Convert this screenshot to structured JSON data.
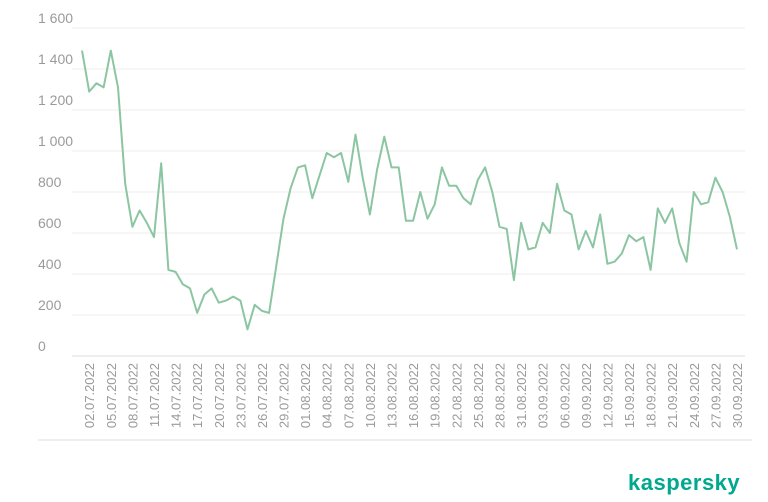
{
  "brand": {
    "logo_text": "kaspersky",
    "accent_color": "#00a88e"
  },
  "chart_data": {
    "type": "line",
    "title": "",
    "xlabel": "",
    "ylabel": "",
    "ylim": [
      0,
      1600
    ],
    "yticks": [
      0,
      200,
      400,
      600,
      800,
      1000,
      1200,
      1400,
      1600
    ],
    "ytick_labels": [
      "0",
      "200",
      "400",
      "600",
      "800",
      "1 000",
      "1 200",
      "1 400",
      "1 600"
    ],
    "grid": true,
    "line_color": "#8cc5a2",
    "x_start": "01.07.2022",
    "x_end": "30.09.2022",
    "x_tick_labels": [
      "02.07.2022",
      "05.07.2022",
      "08.07.2022",
      "11.07.2022",
      "14.07.2022",
      "17.07.2022",
      "20.07.2022",
      "23.07.2022",
      "26.07.2022",
      "29.07.2022",
      "01.08.2022",
      "04.08.2022",
      "07.08.2022",
      "10.08.2022",
      "13.08.2022",
      "16.08.2022",
      "19.08.2022",
      "22.08.2022",
      "25.08.2022",
      "28.08.2022",
      "31.08.2022",
      "03.09.2022",
      "06.09.2022",
      "09.09.2022",
      "12.09.2022",
      "15.09.2022",
      "18.09.2022",
      "21.09.2022",
      "24.09.2022",
      "27.09.2022",
      "30.09.2022"
    ],
    "series": [
      {
        "values": [
          1490,
          1290,
          1330,
          1310,
          1490,
          1310,
          840,
          630,
          710,
          650,
          580,
          940,
          420,
          410,
          350,
          330,
          210,
          300,
          330,
          260,
          270,
          290,
          270,
          130,
          250,
          220,
          210,
          440,
          670,
          820,
          920,
          930,
          770,
          880,
          990,
          970,
          990,
          850,
          1080,
          870,
          690,
          910,
          1070,
          920,
          920,
          660,
          660,
          800,
          670,
          740,
          920,
          830,
          830,
          770,
          740,
          860,
          920,
          800,
          630,
          620,
          370,
          650,
          520,
          530,
          650,
          600,
          840,
          710,
          690,
          520,
          610,
          530,
          690,
          450,
          460,
          500,
          590,
          560,
          580,
          420,
          720,
          650,
          720,
          550,
          460,
          800,
          740,
          750,
          870,
          800,
          680,
          520
        ]
      }
    ]
  }
}
